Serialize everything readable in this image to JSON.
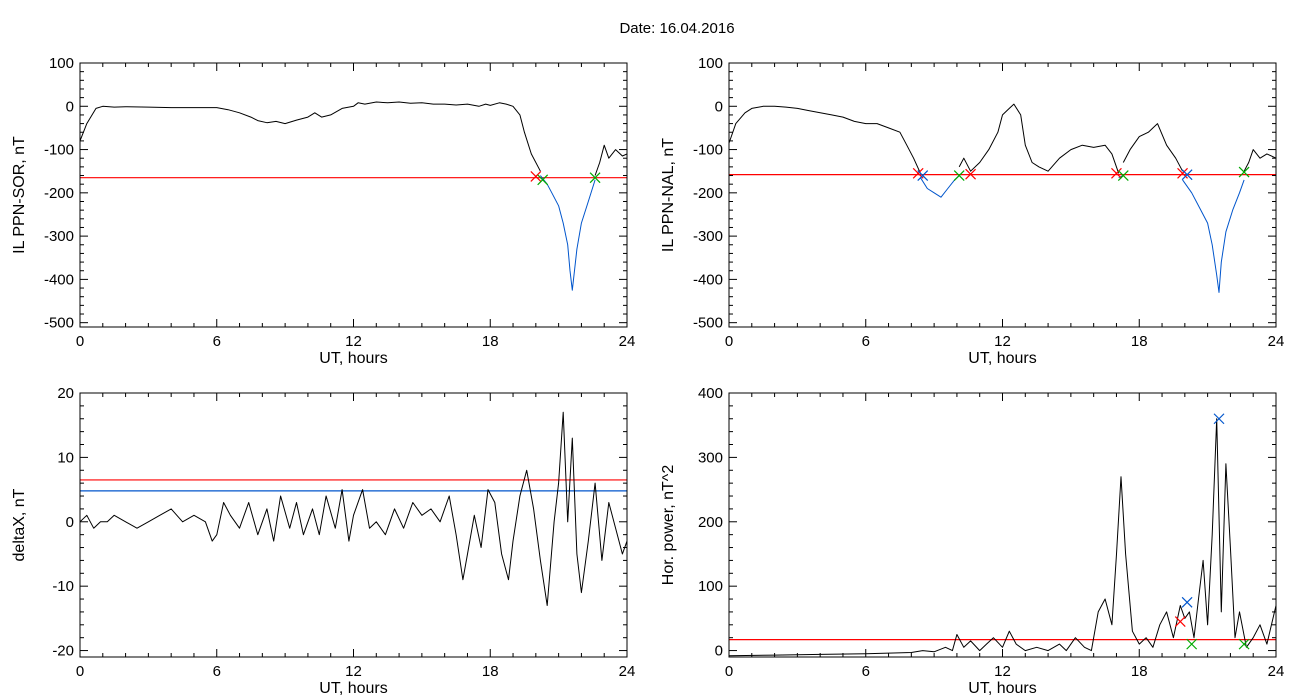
{
  "figure": {
    "title": "Date:  16.04.2016"
  },
  "chart_data": [
    {
      "type": "line",
      "ylabel": "IL PPN-SOR, nT",
      "xlabel": "UT, hours",
      "xlim": [
        0,
        24
      ],
      "ylim": [
        -510,
        100
      ],
      "xticks": [
        0,
        6,
        12,
        18,
        24
      ],
      "yticks": [
        -500,
        -400,
        -300,
        -200,
        -100,
        0,
        100
      ],
      "grid": false,
      "threshold_lines": [
        {
          "value": -165,
          "color": "#ff0000"
        }
      ],
      "series": [
        {
          "color": "#000000",
          "x": [
            0,
            0.3,
            0.7,
            1,
            1.5,
            2,
            3,
            4,
            5,
            6,
            6.5,
            7,
            7.5,
            7.8,
            8.2,
            8.6,
            9,
            9.5,
            10,
            10.3,
            10.6,
            11,
            11.5,
            12,
            12.2,
            12.5,
            13,
            13.5,
            14,
            14.5,
            15,
            15.5,
            16,
            16.5,
            17,
            17.5,
            17.8,
            18,
            18.4,
            18.7,
            19,
            19.3,
            19.5,
            19.8,
            20.2
          ],
          "y": [
            -80,
            -40,
            -5,
            0,
            -2,
            -1,
            -2,
            -3,
            -3,
            -3,
            -8,
            -15,
            -25,
            -33,
            -38,
            -35,
            -40,
            -32,
            -25,
            -15,
            -25,
            -20,
            -5,
            0,
            8,
            5,
            10,
            8,
            10,
            7,
            8,
            5,
            5,
            3,
            5,
            0,
            5,
            2,
            8,
            5,
            0,
            -20,
            -60,
            -110,
            -150
          ]
        },
        {
          "color": "#0055cc",
          "x": [
            20.2,
            20.5,
            20.7,
            21,
            21.2,
            21.4,
            21.5,
            21.6,
            21.8,
            22,
            22.3,
            22.6
          ],
          "y": [
            -160,
            -180,
            -200,
            -230,
            -270,
            -320,
            -380,
            -425,
            -330,
            -270,
            -220,
            -170
          ]
        },
        {
          "color": "#000000",
          "x": [
            22.6,
            22.8,
            23,
            23.2,
            23.5,
            23.8,
            24
          ],
          "y": [
            -160,
            -130,
            -90,
            -120,
            -100,
            -115,
            -110
          ]
        }
      ],
      "markers": [
        {
          "symbol": "x",
          "color": "#ff0000",
          "x": 20.0,
          "y": -162
        },
        {
          "symbol": "x",
          "color": "#00aa00",
          "x": 20.3,
          "y": -170
        },
        {
          "symbol": "x",
          "color": "#00aa00",
          "x": 22.6,
          "y": -165
        }
      ]
    },
    {
      "type": "line",
      "ylabel": "IL PPN-NAL, nT",
      "xlabel": "UT, hours",
      "xlim": [
        0,
        24
      ],
      "ylim": [
        -510,
        100
      ],
      "xticks": [
        0,
        6,
        12,
        18,
        24
      ],
      "yticks": [
        -500,
        -400,
        -300,
        -200,
        -100,
        0,
        100
      ],
      "grid": false,
      "threshold_lines": [
        {
          "value": -158,
          "color": "#ff0000"
        }
      ],
      "series": [
        {
          "color": "#000000",
          "x": [
            0,
            0.3,
            0.7,
            1,
            1.5,
            2,
            2.5,
            3,
            3.5,
            4,
            4.5,
            5,
            5.5,
            6,
            6.5,
            7,
            7.5,
            7.8,
            8.1,
            8.4
          ],
          "y": [
            -85,
            -40,
            -15,
            -5,
            0,
            0,
            -2,
            -5,
            -10,
            -15,
            -20,
            -25,
            -35,
            -40,
            -40,
            -50,
            -60,
            -90,
            -120,
            -155
          ]
        },
        {
          "color": "#0055cc",
          "x": [
            8.4,
            8.7,
            9,
            9.3,
            9.6,
            9.9,
            10.1
          ],
          "y": [
            -165,
            -190,
            -200,
            -210,
            -190,
            -170,
            -160
          ]
        },
        {
          "color": "#000000",
          "x": [
            10.1,
            10.3,
            10.6,
            11,
            11.4,
            11.8,
            12,
            12.3,
            12.5,
            12.8,
            13,
            13.3,
            13.6,
            14,
            14.5,
            15,
            15.5,
            16,
            16.5,
            16.8,
            17.1
          ],
          "y": [
            -140,
            -120,
            -150,
            -130,
            -100,
            -60,
            -20,
            -5,
            5,
            -20,
            -90,
            -130,
            -140,
            -150,
            -120,
            -100,
            -90,
            -95,
            -90,
            -110,
            -155
          ]
        },
        {
          "color": "#0055cc",
          "x": [
            17.1,
            17.3
          ],
          "y": [
            -165,
            -160
          ]
        },
        {
          "color": "#000000",
          "x": [
            17.3,
            17.6,
            18,
            18.4,
            18.8,
            19.2,
            19.6,
            19.9
          ],
          "y": [
            -130,
            -100,
            -70,
            -60,
            -40,
            -90,
            -120,
            -150
          ]
        },
        {
          "color": "#0055cc",
          "x": [
            19.9,
            20.3,
            20.7,
            21,
            21.2,
            21.4,
            21.5,
            21.6,
            21.8,
            22.1,
            22.4,
            22.6
          ],
          "y": [
            -170,
            -200,
            -240,
            -270,
            -320,
            -390,
            -430,
            -360,
            -290,
            -240,
            -200,
            -170
          ]
        },
        {
          "color": "#000000",
          "x": [
            22.6,
            22.8,
            23,
            23.3,
            23.6,
            24
          ],
          "y": [
            -150,
            -130,
            -100,
            -120,
            -110,
            -120
          ]
        }
      ],
      "markers": [
        {
          "symbol": "x",
          "color": "#ff0000",
          "x": 8.3,
          "y": -155
        },
        {
          "symbol": "x",
          "color": "#0055cc",
          "x": 8.5,
          "y": -160
        },
        {
          "symbol": "x",
          "color": "#00aa00",
          "x": 10.1,
          "y": -160
        },
        {
          "symbol": "x",
          "color": "#ff0000",
          "x": 10.6,
          "y": -157
        },
        {
          "symbol": "x",
          "color": "#ff0000",
          "x": 17.0,
          "y": -155
        },
        {
          "symbol": "x",
          "color": "#00aa00",
          "x": 17.3,
          "y": -160
        },
        {
          "symbol": "x",
          "color": "#ff0000",
          "x": 19.9,
          "y": -155
        },
        {
          "symbol": "x",
          "color": "#0055cc",
          "x": 20.1,
          "y": -158
        },
        {
          "symbol": "x",
          "color": "#00aa00",
          "x": 22.6,
          "y": -152
        }
      ]
    },
    {
      "type": "line",
      "ylabel": "deltaX, nT",
      "xlabel": "UT, hours",
      "xlim": [
        0,
        24
      ],
      "ylim": [
        -21,
        20
      ],
      "xticks": [
        0,
        6,
        12,
        18,
        24
      ],
      "yticks": [
        -20,
        -10,
        0,
        10,
        20
      ],
      "grid": false,
      "threshold_lines": [
        {
          "value": 6.5,
          "color": "#ff0000"
        },
        {
          "value": 4.8,
          "color": "#0055cc"
        }
      ],
      "series": [
        {
          "color": "#000000",
          "x": [
            0,
            0.3,
            0.6,
            0.9,
            1.2,
            1.5,
            2,
            2.5,
            3,
            3.5,
            4,
            4.5,
            5,
            5.5,
            5.8,
            6,
            6.3,
            6.6,
            7,
            7.4,
            7.8,
            8.2,
            8.5,
            8.8,
            9.2,
            9.5,
            9.8,
            10.2,
            10.5,
            10.8,
            11.2,
            11.5,
            11.8,
            12,
            12.4,
            12.7,
            13,
            13.4,
            13.8,
            14.2,
            14.6,
            15,
            15.4,
            15.8,
            16.2,
            16.5,
            16.8,
            17,
            17.3,
            17.6,
            17.9,
            18.2,
            18.5,
            18.8,
            19,
            19.3,
            19.6,
            19.9,
            20.2,
            20.5,
            20.8,
            21,
            21.2,
            21.4,
            21.6,
            21.8,
            22,
            22.3,
            22.6,
            22.9,
            23.2,
            23.5,
            23.8,
            24
          ],
          "y": [
            0,
            1,
            -1,
            0,
            0,
            1,
            0,
            -1,
            0,
            1,
            2,
            0,
            1,
            0,
            -3,
            -2,
            3,
            1,
            -1,
            3,
            -2,
            2,
            -3,
            4,
            -1,
            3,
            -2,
            2,
            -2,
            4,
            -1,
            5,
            -3,
            1,
            5,
            -1,
            0,
            -2,
            2,
            -1,
            3,
            1,
            2,
            0,
            4,
            -2,
            -9,
            -5,
            1,
            -4,
            5,
            3,
            -5,
            -9,
            -3,
            4,
            8,
            2,
            -6,
            -13,
            0,
            6,
            17,
            0,
            13,
            -5,
            -11,
            -3,
            6,
            -6,
            3,
            -1,
            -5,
            -3
          ]
        }
      ],
      "markers": []
    },
    {
      "type": "line",
      "ylabel": "Hor. power, nT^2",
      "xlabel": "UT, hours",
      "xlim": [
        0,
        24
      ],
      "ylim": [
        -10,
        400
      ],
      "xticks": [
        0,
        6,
        12,
        18,
        24
      ],
      "yticks": [
        0,
        100,
        200,
        300,
        400
      ],
      "grid": false,
      "threshold_lines": [
        {
          "value": 17,
          "color": "#ff0000"
        }
      ],
      "series": [
        {
          "color": "#000000",
          "x": [
            0,
            2,
            4,
            6,
            7,
            8,
            8.5,
            9,
            9.5,
            9.8,
            10,
            10.3,
            10.6,
            11,
            11.3,
            11.6,
            12,
            12.3,
            12.6,
            13,
            13.5,
            14,
            14.5,
            14.8,
            15.2,
            15.6,
            15.9,
            16.2,
            16.5,
            16.8,
            17,
            17.2,
            17.4,
            17.7,
            18,
            18.3,
            18.6,
            18.9,
            19.2,
            19.5,
            19.8,
            20,
            20.2,
            20.4,
            20.6,
            20.8,
            21,
            21.2,
            21.4,
            21.6,
            21.8,
            22,
            22.2,
            22.4,
            22.7,
            23,
            23.3,
            23.6,
            24
          ],
          "y": [
            -8,
            -7,
            -6,
            -5,
            -4,
            -3,
            0,
            -2,
            5,
            0,
            25,
            5,
            15,
            0,
            10,
            20,
            5,
            30,
            10,
            0,
            5,
            0,
            10,
            0,
            20,
            5,
            0,
            60,
            80,
            40,
            150,
            270,
            150,
            30,
            10,
            20,
            5,
            40,
            60,
            20,
            70,
            50,
            60,
            20,
            80,
            140,
            40,
            180,
            360,
            60,
            290,
            160,
            20,
            60,
            5,
            20,
            40,
            10,
            70
          ]
        }
      ],
      "markers": [
        {
          "symbol": "x",
          "color": "#ff0000",
          "x": 19.8,
          "y": 45
        },
        {
          "symbol": "x",
          "color": "#0055cc",
          "x": 20.1,
          "y": 75
        },
        {
          "symbol": "x",
          "color": "#00aa00",
          "x": 20.3,
          "y": 10
        },
        {
          "symbol": "x",
          "color": "#0055cc",
          "x": 21.5,
          "y": 360
        },
        {
          "symbol": "x",
          "color": "#00aa00",
          "x": 22.6,
          "y": 10
        }
      ]
    }
  ]
}
